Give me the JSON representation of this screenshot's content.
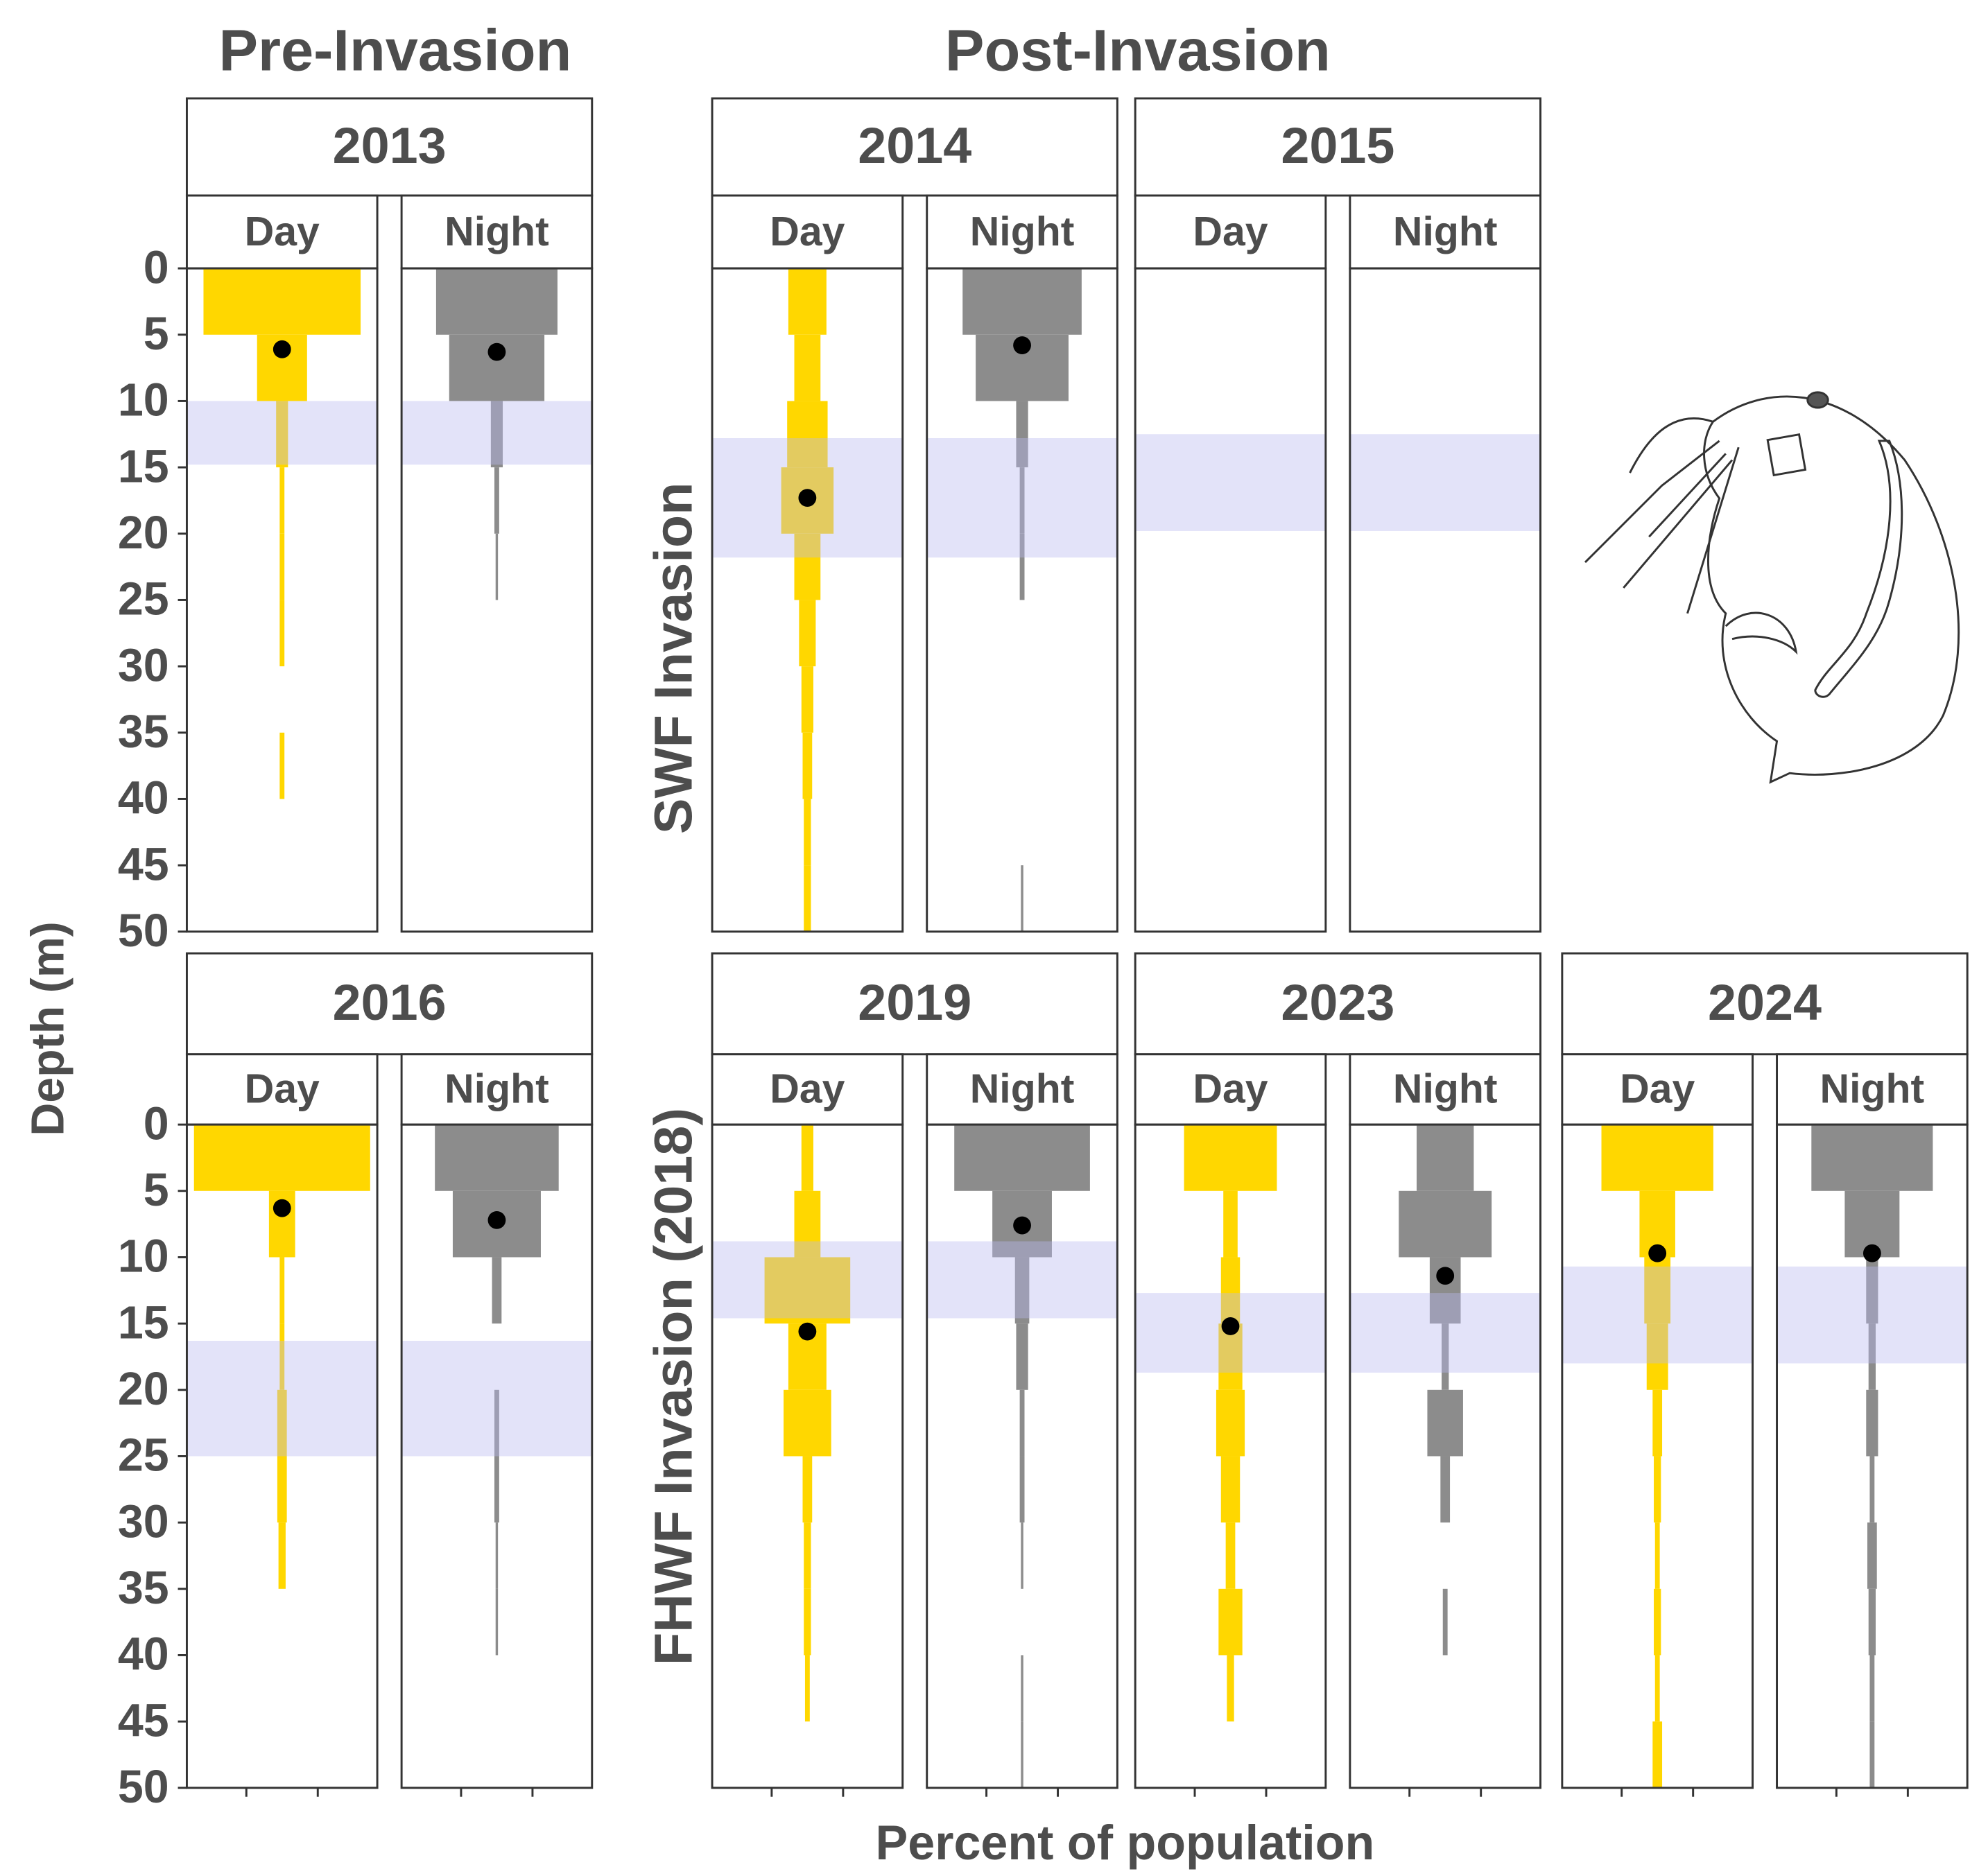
{
  "chart_data": {
    "type": "kite",
    "group_titles": [
      "Pre-Invasion",
      "Post-Invasion"
    ],
    "row_labels": [
      "SWF Invasion",
      "FHWF Invasion (2018)"
    ],
    "y_label": "Depth (m)",
    "x_label": "Percent of population",
    "periods": [
      "Day",
      "Night"
    ],
    "colors": [
      "#ffd700",
      "#8c8c8c"
    ],
    "band_color": "#b8b8f0",
    "mean_color": "#000000",
    "depth_bins": [
      0,
      5,
      10,
      15,
      20,
      25,
      30,
      35,
      40,
      45,
      50
    ],
    "ylim": [
      0,
      50
    ],
    "yticks": [
      0,
      5,
      10,
      15,
      20,
      25,
      30,
      35,
      40,
      45,
      50
    ],
    "xlim": [
      -40,
      40
    ],
    "xticks": [
      -15,
      15
    ],
    "panels": [
      {
        "year": "2013",
        "band": [
          10,
          14.8
        ],
        "series": [
          {
            "values": [
              66,
              21,
              5,
              2,
              2,
              2,
              0,
              2,
              0,
              0
            ],
            "mean": 6.1
          },
          {
            "values": [
              51,
              40,
              5,
              2,
              1,
              0,
              0,
              0,
              0,
              0
            ],
            "mean": 6.3
          }
        ]
      },
      {
        "year": "2014",
        "band": [
          12.8,
          21.8
        ],
        "series": [
          {
            "values": [
              16,
              11,
              17,
              22,
              11,
              7,
              5,
              4,
              3,
              3
            ],
            "mean": 17.3
          },
          {
            "values": [
              50,
              39,
              5,
              2,
              2,
              0,
              0,
              0,
              0,
              1
            ],
            "mean": 5.8
          }
        ]
      },
      {
        "year": "2015",
        "band": [
          12.5,
          19.8
        ],
        "series": [
          {
            "values": [
              null,
              null,
              null,
              null,
              null,
              null,
              null,
              null,
              null,
              null
            ],
            "mean": null
          },
          {
            "values": [
              null,
              null,
              null,
              null,
              null,
              null,
              null,
              null,
              null,
              null
            ],
            "mean": null
          }
        ]
      },
      {
        "year": "2016",
        "band": [
          16.3,
          25
        ],
        "series": [
          {
            "values": [
              74,
              11,
              2,
              2,
              4,
              4,
              3,
              0,
              0,
              0
            ],
            "mean": 6.3
          },
          {
            "values": [
              52,
              37,
              4,
              0,
              2,
              2,
              1,
              1,
              0,
              0
            ],
            "mean": 7.2
          }
        ]
      },
      {
        "year": "2019",
        "band": [
          8.8,
          14.6
        ],
        "series": [
          {
            "values": [
              5,
              11,
              36,
              16,
              20,
              4,
              3,
              3,
              2,
              0
            ],
            "mean": 15.6
          },
          {
            "values": [
              57,
              25,
              6,
              5,
              2,
              2,
              1,
              0,
              1,
              1
            ],
            "mean": 7.6
          }
        ]
      },
      {
        "year": "2023",
        "band": [
          12.7,
          18.7
        ],
        "series": [
          {
            "values": [
              39,
              6,
              8,
              10,
              12,
              8,
              4,
              10,
              3,
              0
            ],
            "mean": 15.2
          },
          {
            "values": [
              24,
              39,
              13,
              3,
              15,
              4,
              0,
              2,
              0,
              0
            ],
            "mean": 11.4
          }
        ]
      },
      {
        "year": "2024",
        "band": [
          10.7,
          18
        ],
        "series": [
          {
            "values": [
              47,
              15,
              11,
              9,
              4,
              3,
              2,
              3,
              2,
              4
            ],
            "mean": 9.7
          },
          {
            "values": [
              51,
              23,
              5,
              3,
              5,
              2,
              4,
              3,
              2,
              2
            ],
            "mean": 9.7
          }
        ]
      }
    ]
  }
}
